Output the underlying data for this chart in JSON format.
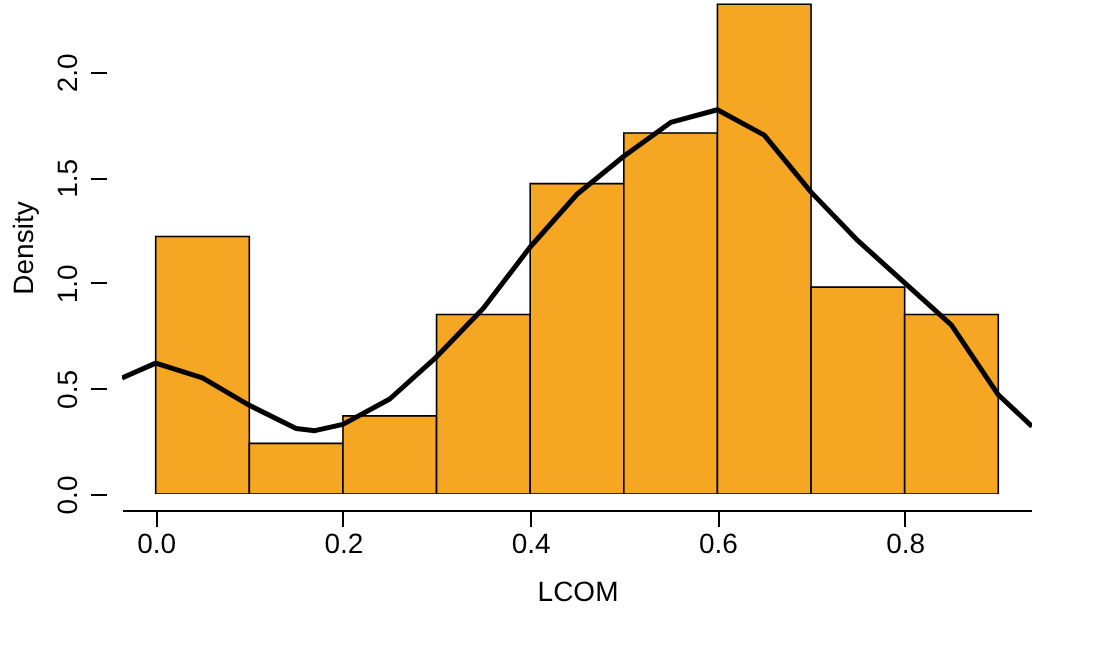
{
  "chart_data": {
    "type": "histogram",
    "xlabel": "LCOM",
    "ylabel": "Density",
    "bins": [
      0,
      0.1,
      0.2,
      0.3,
      0.4,
      0.5,
      0.6,
      0.7,
      0.8,
      0.9
    ],
    "values": [
      1.22,
      0.24,
      0.37,
      0.85,
      1.47,
      1.71,
      2.32,
      0.98,
      0.85
    ],
    "color": "#f5a623",
    "series": [
      {
        "type": "line",
        "color": "#000000",
        "x": [
          -0.036,
          0.0,
          0.05,
          0.1,
          0.15,
          0.17,
          0.2,
          0.25,
          0.3,
          0.35,
          0.4,
          0.45,
          0.5,
          0.55,
          0.6,
          0.65,
          0.7,
          0.75,
          0.8,
          0.85,
          0.9,
          0.936
        ],
        "values": [
          0.55,
          0.62,
          0.55,
          0.42,
          0.31,
          0.3,
          0.33,
          0.45,
          0.65,
          0.88,
          1.17,
          1.42,
          1.6,
          1.76,
          1.82,
          1.7,
          1.43,
          1.2,
          1.0,
          0.8,
          0.47,
          0.32
        ]
      }
    ],
    "xlim": [
      -0.036,
      0.936
    ],
    "ylim": [
      0,
      2.34
    ],
    "xticks": [
      {
        "value": 0,
        "label": "0.0"
      },
      0.2,
      0.4,
      0.6,
      0.8
    ],
    "yticks": [
      {
        "value": 0,
        "label": "0.0"
      },
      0.5,
      {
        "value": 1,
        "label": "1.0"
      },
      1.5,
      {
        "value": 2,
        "label": "2.0"
      }
    ],
    "grid": false
  }
}
